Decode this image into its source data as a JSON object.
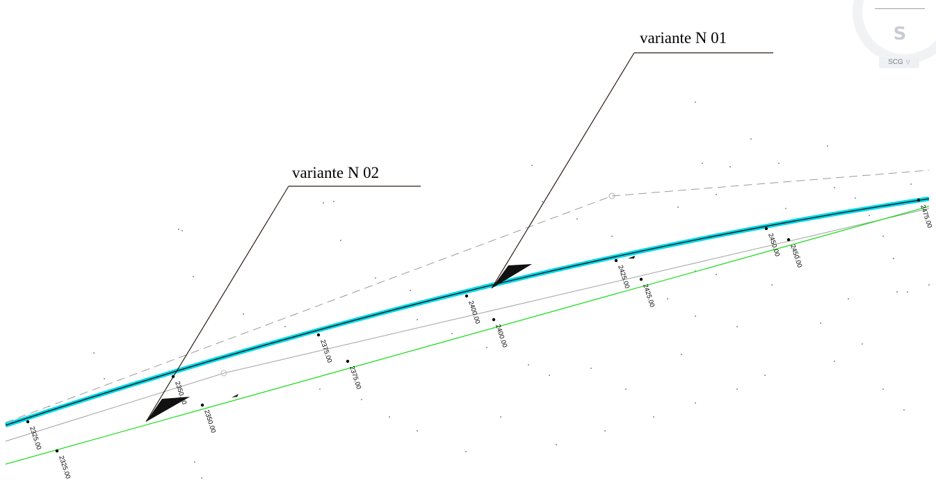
{
  "viewcube": {
    "face_label": "S",
    "ucs_label": "SCG",
    "ucs_caret_icon": "caret-down-icon"
  },
  "annotations": [
    {
      "text": "variante N 01"
    },
    {
      "text": "variante N 02"
    }
  ],
  "stations": {
    "cyan_alignment": [
      "2325.00",
      "2350.00",
      "2375.00",
      "2400.00",
      "2425.00",
      "2450.00",
      "2475.00"
    ],
    "green_alignment": [
      "2325.00",
      "2350.00",
      "2375.00",
      "2400.00",
      "2425.00",
      "2450.00"
    ]
  },
  "colors": {
    "alignment_main": "#00d8e8",
    "alignment_green": "#22dd22",
    "alignment_gray": "#9a9a9a",
    "dashed_line": "#9a9a9a",
    "leader": "#2a1a14"
  }
}
